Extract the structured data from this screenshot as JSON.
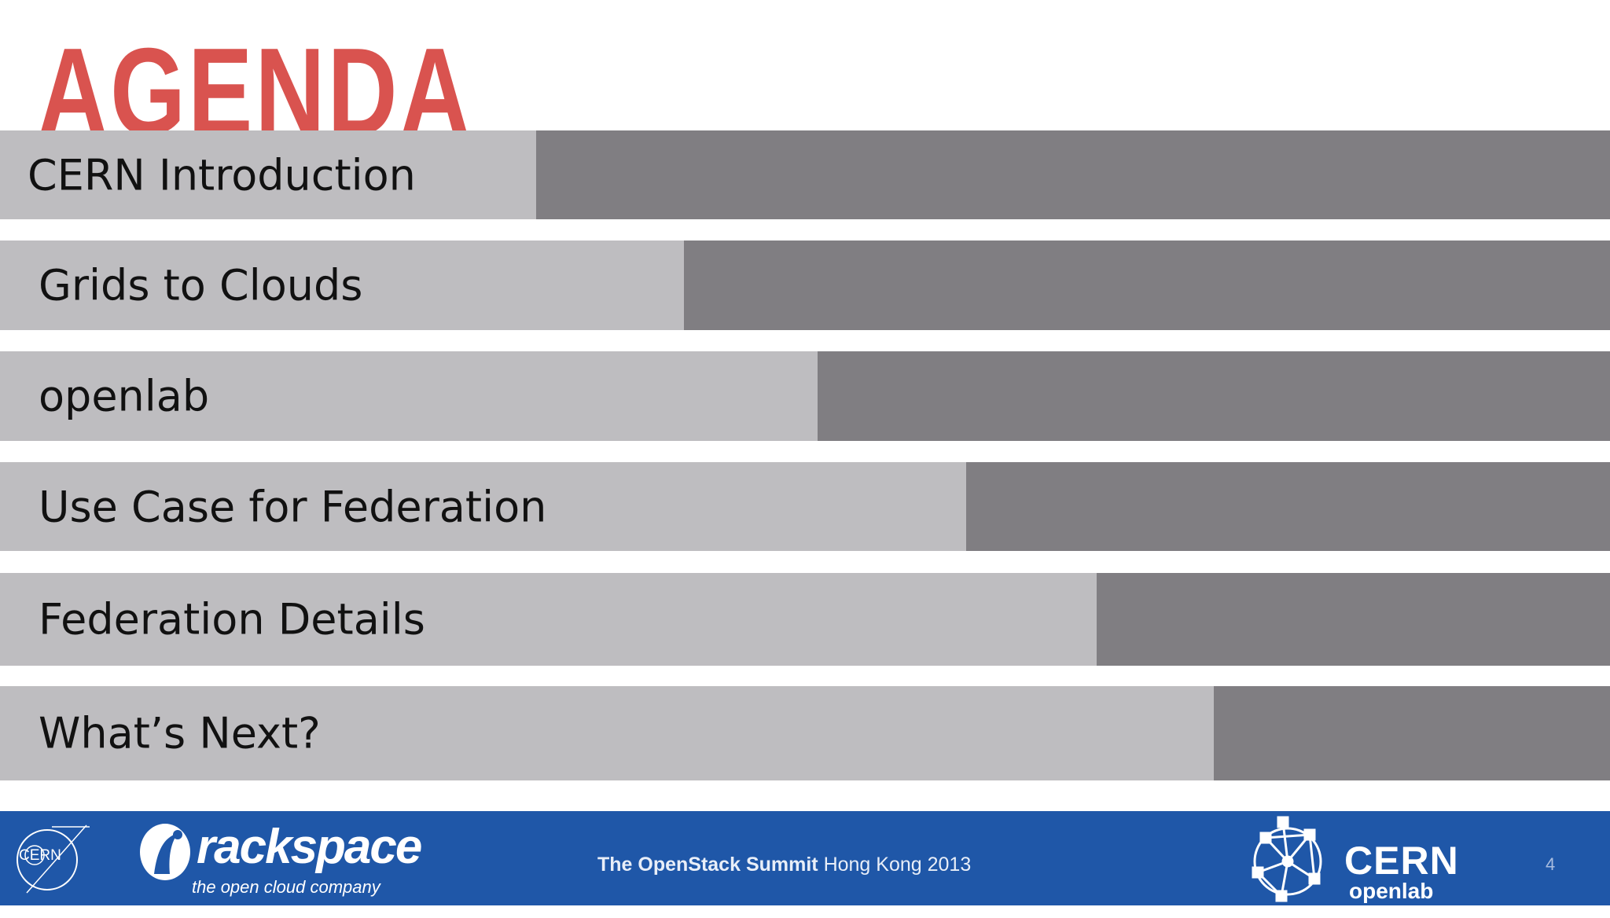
{
  "slide": {
    "title": "AGENDA",
    "colors": {
      "title": "#d9534f",
      "bar_light": "#bebdc0",
      "bar_dark": "#807e82",
      "footer": "#1f57a8"
    }
  },
  "agenda": [
    {
      "label": "CERN Introduction",
      "progress": 0.333
    },
    {
      "label": "Grids to Clouds",
      "progress": 0.425
    },
    {
      "label": "openlab",
      "progress": 0.508
    },
    {
      "label": "Use Case for Federation",
      "progress": 0.6
    },
    {
      "label": "Federation Details",
      "progress": 0.681
    },
    {
      "label": "What’s Next?",
      "progress": 0.754
    }
  ],
  "footer": {
    "cern_logo_text": "CERN",
    "rackspace_name": "rackspace",
    "rackspace_tagline": "the open cloud company",
    "summit_bold": "The OpenStack Summit",
    "summit_rest": " Hong Kong 2013",
    "openlab_cern": "CERN",
    "openlab_name": "openlab",
    "page_number": "4"
  }
}
